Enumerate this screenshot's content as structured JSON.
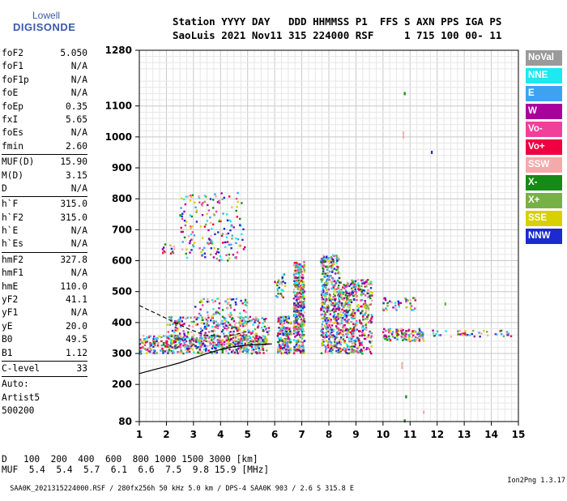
{
  "logo": {
    "line1": "Lowell",
    "line2": "DIGISONDE"
  },
  "header": {
    "line1": "Station YYYY DAY   DDD HHMMSS P1  FFS S AXN PPS IGA PS",
    "line2": "SaoLuis 2021 Nov11 315 224000 RSF     1 715 100 00- 11"
  },
  "params": {
    "group1": [
      {
        "label": "foF2",
        "value": "5.050"
      },
      {
        "label": "foF1",
        "value": "N/A"
      },
      {
        "label": "foF1p",
        "value": "N/A"
      },
      {
        "label": "foE",
        "value": "N/A"
      },
      {
        "label": "foEp",
        "value": "0.35"
      },
      {
        "label": "fxI",
        "value": "5.65"
      },
      {
        "label": "foEs",
        "value": "N/A"
      },
      {
        "label": "fmin",
        "value": "2.60"
      }
    ],
    "group2": [
      {
        "label": "MUF(D)",
        "value": "15.90"
      },
      {
        "label": "M(D)",
        "value": "3.15"
      },
      {
        "label": "D",
        "value": "N/A"
      }
    ],
    "group3": [
      {
        "label": "h`F",
        "value": "315.0"
      },
      {
        "label": "h`F2",
        "value": "315.0"
      },
      {
        "label": "h`E",
        "value": "N/A"
      },
      {
        "label": "h`Es",
        "value": "N/A"
      }
    ],
    "group4": [
      {
        "label": "hmF2",
        "value": "327.8"
      },
      {
        "label": "hmF1",
        "value": "N/A"
      },
      {
        "label": "hmE",
        "value": "110.0"
      },
      {
        "label": "yF2",
        "value": "41.1"
      },
      {
        "label": "yF1",
        "value": "N/A"
      },
      {
        "label": "yE",
        "value": "20.0"
      },
      {
        "label": "B0",
        "value": "49.5"
      },
      {
        "label": "B1",
        "value": "1.12"
      }
    ],
    "group5": [
      {
        "label": "C-level",
        "value": "33"
      }
    ],
    "auto": [
      "Auto:",
      "Artist5",
      "500200"
    ]
  },
  "legend": [
    {
      "label": "NoVal",
      "color": "#9a9a9a"
    },
    {
      "label": "NNE",
      "color": "#1ee8f0"
    },
    {
      "label": "E",
      "color": "#3fa2f0"
    },
    {
      "label": "W",
      "color": "#a8009c"
    },
    {
      "label": "Vo-",
      "color": "#f0409a"
    },
    {
      "label": "Vo+",
      "color": "#f00040"
    },
    {
      "label": "SSW",
      "color": "#f5aaaa"
    },
    {
      "label": "X-",
      "color": "#168a16"
    },
    {
      "label": "X+",
      "color": "#78b048"
    },
    {
      "label": "SSE",
      "color": "#d8d000"
    },
    {
      "label": "NNW",
      "color": "#1c2ad0"
    }
  ],
  "chart_data": {
    "type": "scatter",
    "title": "",
    "xlabel": "",
    "ylabel": "",
    "xlim": [
      1,
      15
    ],
    "ylim": [
      80,
      1280
    ],
    "x_ticks": [
      1,
      2,
      3,
      4,
      5,
      6,
      7,
      8,
      9,
      10,
      11,
      12,
      13,
      14,
      15
    ],
    "x_tick_labels": [
      "1",
      "2",
      "3",
      "4",
      "5",
      "6",
      "7",
      "8",
      "9",
      "10",
      "11",
      "12",
      "13",
      "14",
      "15"
    ],
    "y_ticks": [
      80,
      200,
      300,
      400,
      500,
      600,
      700,
      800,
      900,
      1000,
      1100,
      1280
    ],
    "y_tick_labels": [
      "80",
      "200",
      "300",
      "400",
      "500",
      "600",
      "700",
      "800",
      "900",
      "1000",
      "1100",
      "1280"
    ],
    "grid": true,
    "legend_position": "right",
    "trace_curve": {
      "x": [
        1.0,
        1.5,
        2.0,
        2.5,
        3.0,
        3.5,
        4.0,
        4.5,
        5.0,
        5.3,
        5.6,
        5.9
      ],
      "y": [
        235,
        247,
        258,
        270,
        285,
        300,
        313,
        322,
        327,
        329,
        330,
        331
      ]
    },
    "trace_curve2": {
      "x": [
        1.0,
        1.6,
        2.2,
        2.8,
        3.4,
        4.0,
        4.5,
        5.0
      ],
      "y": [
        455,
        430,
        405,
        380,
        360,
        355,
        360,
        372
      ]
    },
    "scatter_regions": [
      {
        "x": [
          1.0,
          5.7
        ],
        "y": [
          300,
          360
        ],
        "density": 500
      },
      {
        "x": [
          2.0,
          5.8
        ],
        "y": [
          320,
          420
        ],
        "density": 350
      },
      {
        "x": [
          3.0,
          5.0
        ],
        "y": [
          380,
          480
        ],
        "density": 90
      },
      {
        "x": [
          2.5,
          4.9
        ],
        "y": [
          600,
          820
        ],
        "density": 180
      },
      {
        "x": [
          1.8,
          2.3
        ],
        "y": [
          620,
          660
        ],
        "density": 15
      },
      {
        "x": [
          6.1,
          6.6
        ],
        "y": [
          300,
          420
        ],
        "density": 180
      },
      {
        "x": [
          6.0,
          6.4
        ],
        "y": [
          480,
          560
        ],
        "density": 30
      },
      {
        "x": [
          6.7,
          7.1
        ],
        "y": [
          300,
          600
        ],
        "density": 380
      },
      {
        "x": [
          7.7,
          8.4
        ],
        "y": [
          300,
          620
        ],
        "density": 450
      },
      {
        "x": [
          8.4,
          9.6
        ],
        "y": [
          300,
          540
        ],
        "density": 450
      },
      {
        "x": [
          10.0,
          11.5
        ],
        "y": [
          340,
          380
        ],
        "density": 110
      },
      {
        "x": [
          10.0,
          11.2
        ],
        "y": [
          440,
          480
        ],
        "density": 40
      },
      {
        "x": [
          11.8,
          14.8
        ],
        "y": [
          355,
          375
        ],
        "density": 45
      }
    ],
    "isolated_points": [
      {
        "x": 10.8,
        "y": 1140,
        "color": "#168a16"
      },
      {
        "x": 10.75,
        "y": 1000,
        "color": "#f5aaaa"
      },
      {
        "x": 10.75,
        "y": 1012,
        "color": "#f5aaaa"
      },
      {
        "x": 11.8,
        "y": 950,
        "color": "#1c2ad0"
      },
      {
        "x": 10.7,
        "y": 255,
        "color": "#f5aaaa"
      },
      {
        "x": 10.7,
        "y": 267,
        "color": "#f5aaaa"
      },
      {
        "x": 10.85,
        "y": 160,
        "color": "#168a16"
      },
      {
        "x": 10.8,
        "y": 82,
        "color": "#168a16"
      },
      {
        "x": 11.5,
        "y": 110,
        "color": "#f5aaaa"
      },
      {
        "x": 12.3,
        "y": 460,
        "color": "#78b048"
      }
    ]
  },
  "dmuf": {
    "d_label": "D",
    "d_values": "   100  200  400  600  800 1000 1500 3000 [km]",
    "muf_label": "MUF",
    "muf_values": "  5.4  5.4  5.7  6.1  6.6  7.5  9.8 15.9 [MHz]"
  },
  "footer": {
    "left": "SAA0K_2021315224000.RSF / 280fx256h 50 kHz 5.0 km / DPS-4 SAA0K 903 / 2.6 S 315.8 E",
    "right": "Ion2Png 1.3.17"
  }
}
